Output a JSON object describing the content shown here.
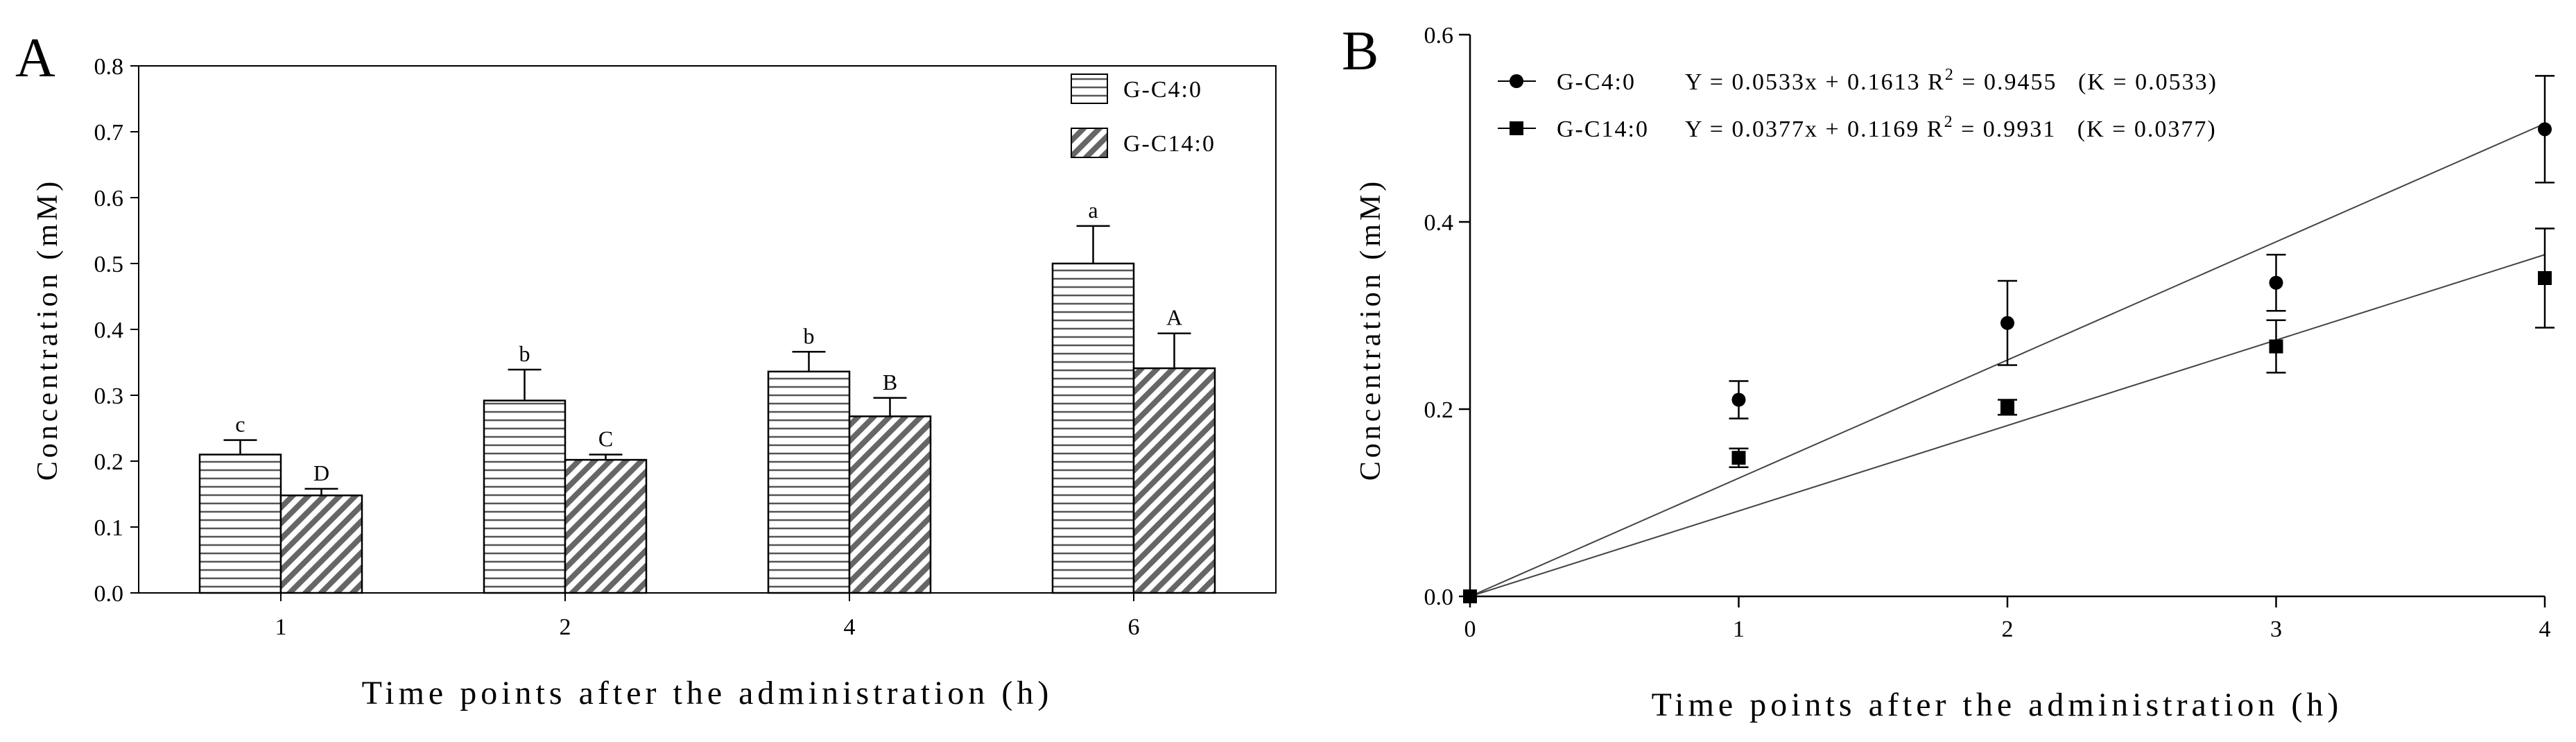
{
  "chart_data": [
    {
      "type": "bar",
      "panel_label": "A",
      "xlabel": "Time points after the administration (h)",
      "ylabel": "Concentration (mM)",
      "ylim": [
        0,
        0.8
      ],
      "yticks": [
        "0.0",
        "0.1",
        "0.2",
        "0.3",
        "0.4",
        "0.5",
        "0.6",
        "0.7",
        "0.8"
      ],
      "categories": [
        "1",
        "2",
        "4",
        "6"
      ],
      "legend_position": "top-right",
      "series": [
        {
          "name": "G-C4:0",
          "pattern": "horizontal-lines",
          "values": [
            0.21,
            0.292,
            0.336,
            0.5
          ],
          "errors": [
            0.022,
            0.047,
            0.03,
            0.057
          ],
          "significance": [
            "c",
            "b",
            "b",
            "a"
          ]
        },
        {
          "name": "G-C14:0",
          "pattern": "diagonal-hatch",
          "values": [
            0.148,
            0.202,
            0.268,
            0.341
          ],
          "errors": [
            0.01,
            0.008,
            0.028,
            0.053
          ],
          "significance": [
            "D",
            "C",
            "B",
            "A"
          ]
        }
      ]
    },
    {
      "type": "scatter",
      "panel_label": "B",
      "xlabel": "Time points after the administration (h)",
      "ylabel": "Concentration (mM)",
      "xlim": [
        0,
        4
      ],
      "ylim": [
        0,
        0.6
      ],
      "xticks": [
        "0",
        "1",
        "2",
        "3",
        "4"
      ],
      "yticks": [
        "0.0",
        "0.2",
        "0.4",
        "0.6"
      ],
      "legend_position": "top-left",
      "series": [
        {
          "name": "G-C4:0",
          "marker": "circle",
          "equation": "Y = 0.0533x + 0.1613",
          "r2_label": "R",
          "r2_sup": "2",
          "r2_value": " = 0.9455",
          "k": "(K = 0.0533)",
          "x": [
            0,
            1,
            2,
            3,
            4
          ],
          "y": [
            0.0,
            0.21,
            0.292,
            0.335,
            0.499
          ],
          "errors": [
            0.0,
            0.02,
            0.045,
            0.03,
            0.057
          ],
          "fit_line": [
            [
              0,
              0.0
            ],
            [
              4,
              0.505
            ]
          ]
        },
        {
          "name": "G-C14:0",
          "marker": "square",
          "equation": "Y = 0.0377x + 0.1169",
          "r2_label": "R",
          "r2_sup": "2",
          "r2_value": " = 0.9931",
          "k": "(K = 0.0377)",
          "x": [
            0,
            1,
            2,
            3,
            4
          ],
          "y": [
            0.0,
            0.148,
            0.202,
            0.267,
            0.34
          ],
          "errors": [
            0.0,
            0.01,
            0.008,
            0.028,
            0.053
          ],
          "fit_line": [
            [
              0,
              0.0
            ],
            [
              4,
              0.365
            ]
          ]
        }
      ]
    }
  ]
}
